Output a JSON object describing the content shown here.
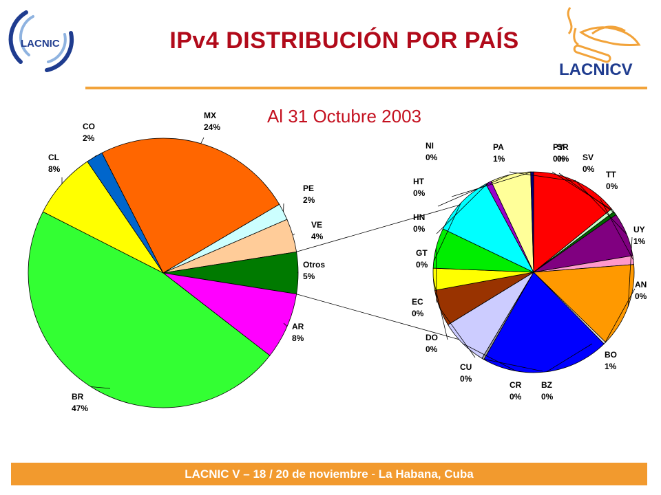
{
  "header": {
    "title": "IPv4 DISTRIBUCIÓN POR PAÍS",
    "logo_left_text": "LACNIC",
    "logo_right_text": "LACNICV"
  },
  "subtitle": "Al 31 Octubre 2003",
  "footer": {
    "text_bold": "LACNIC V – 18 / 20 de noviembre",
    "text_thin": " - ",
    "text_bold2": "La Habana, Cuba"
  },
  "colors": {
    "title": "#b10a1a",
    "accent_orange": "#f29a2e",
    "logo_blue": "#1f3c8f"
  },
  "chart_data": [
    {
      "type": "pie",
      "name": "main",
      "title": "",
      "slices": [
        {
          "label": "MX",
          "percent_label": "24%",
          "value": 24,
          "color": "#ff6600"
        },
        {
          "label": "PE",
          "percent_label": "2%",
          "value": 2,
          "color": "#ccffff"
        },
        {
          "label": "VE",
          "percent_label": "4%",
          "value": 4,
          "color": "#ffcc99"
        },
        {
          "label": "Otros",
          "percent_label": "5%",
          "value": 5,
          "color": "#007a00"
        },
        {
          "label": "AR",
          "percent_label": "8%",
          "value": 8,
          "color": "#ff00ff"
        },
        {
          "label": "BR",
          "percent_label": "47%",
          "value": 47,
          "color": "#33ff33"
        },
        {
          "label": "CL",
          "percent_label": "8%",
          "value": 8,
          "color": "#ffff00"
        },
        {
          "label": "CO",
          "percent_label": "2%",
          "value": 2,
          "color": "#0066cc"
        }
      ]
    },
    {
      "type": "pie",
      "name": "otros-breakdown",
      "title": "",
      "slices": [
        {
          "label": "PA",
          "percent_label": "1%",
          "value": 12,
          "color": "#ff0000"
        },
        {
          "label": "PY",
          "percent_label": "0%",
          "value": 0.5,
          "color": "#ccffcc"
        },
        {
          "label": "SR",
          "percent_label": "0%",
          "value": 0.5,
          "color": "#006600"
        },
        {
          "label": "SV",
          "percent_label": "0%",
          "value": 6,
          "color": "#800080"
        },
        {
          "label": "TT",
          "percent_label": "0%",
          "value": 1.2,
          "color": "#ff99cc"
        },
        {
          "label": "UY",
          "percent_label": "1%",
          "value": 11.5,
          "color": "#ff9900"
        },
        {
          "label": "AN",
          "percent_label": "0%",
          "value": 0.3,
          "color": "#e0e0e0"
        },
        {
          "label": "BO",
          "percent_label": "1%",
          "value": 17.5,
          "color": "#0000ff"
        },
        {
          "label": "BZ",
          "percent_label": "0%",
          "value": 0.3,
          "color": "#a0a0a0"
        },
        {
          "label": "CR",
          "percent_label": "0%",
          "value": 6.5,
          "color": "#ccccff"
        },
        {
          "label": "CU",
          "percent_label": "0%",
          "value": 5,
          "color": "#993300"
        },
        {
          "label": "DO",
          "percent_label": "0%",
          "value": 3,
          "color": "#ffff00"
        },
        {
          "label": "EC",
          "percent_label": "0%",
          "value": 5.5,
          "color": "#00ee00"
        },
        {
          "label": "GT",
          "percent_label": "0%",
          "value": 8.5,
          "color": "#00ffff"
        },
        {
          "label": "HN",
          "percent_label": "0%",
          "value": 0.8,
          "color": "#9900cc"
        },
        {
          "label": "HT",
          "percent_label": "0%",
          "value": 5.5,
          "color": "#ffff99"
        },
        {
          "label": "NI",
          "percent_label": "0%",
          "value": 0.4,
          "color": "#000080"
        }
      ]
    }
  ]
}
